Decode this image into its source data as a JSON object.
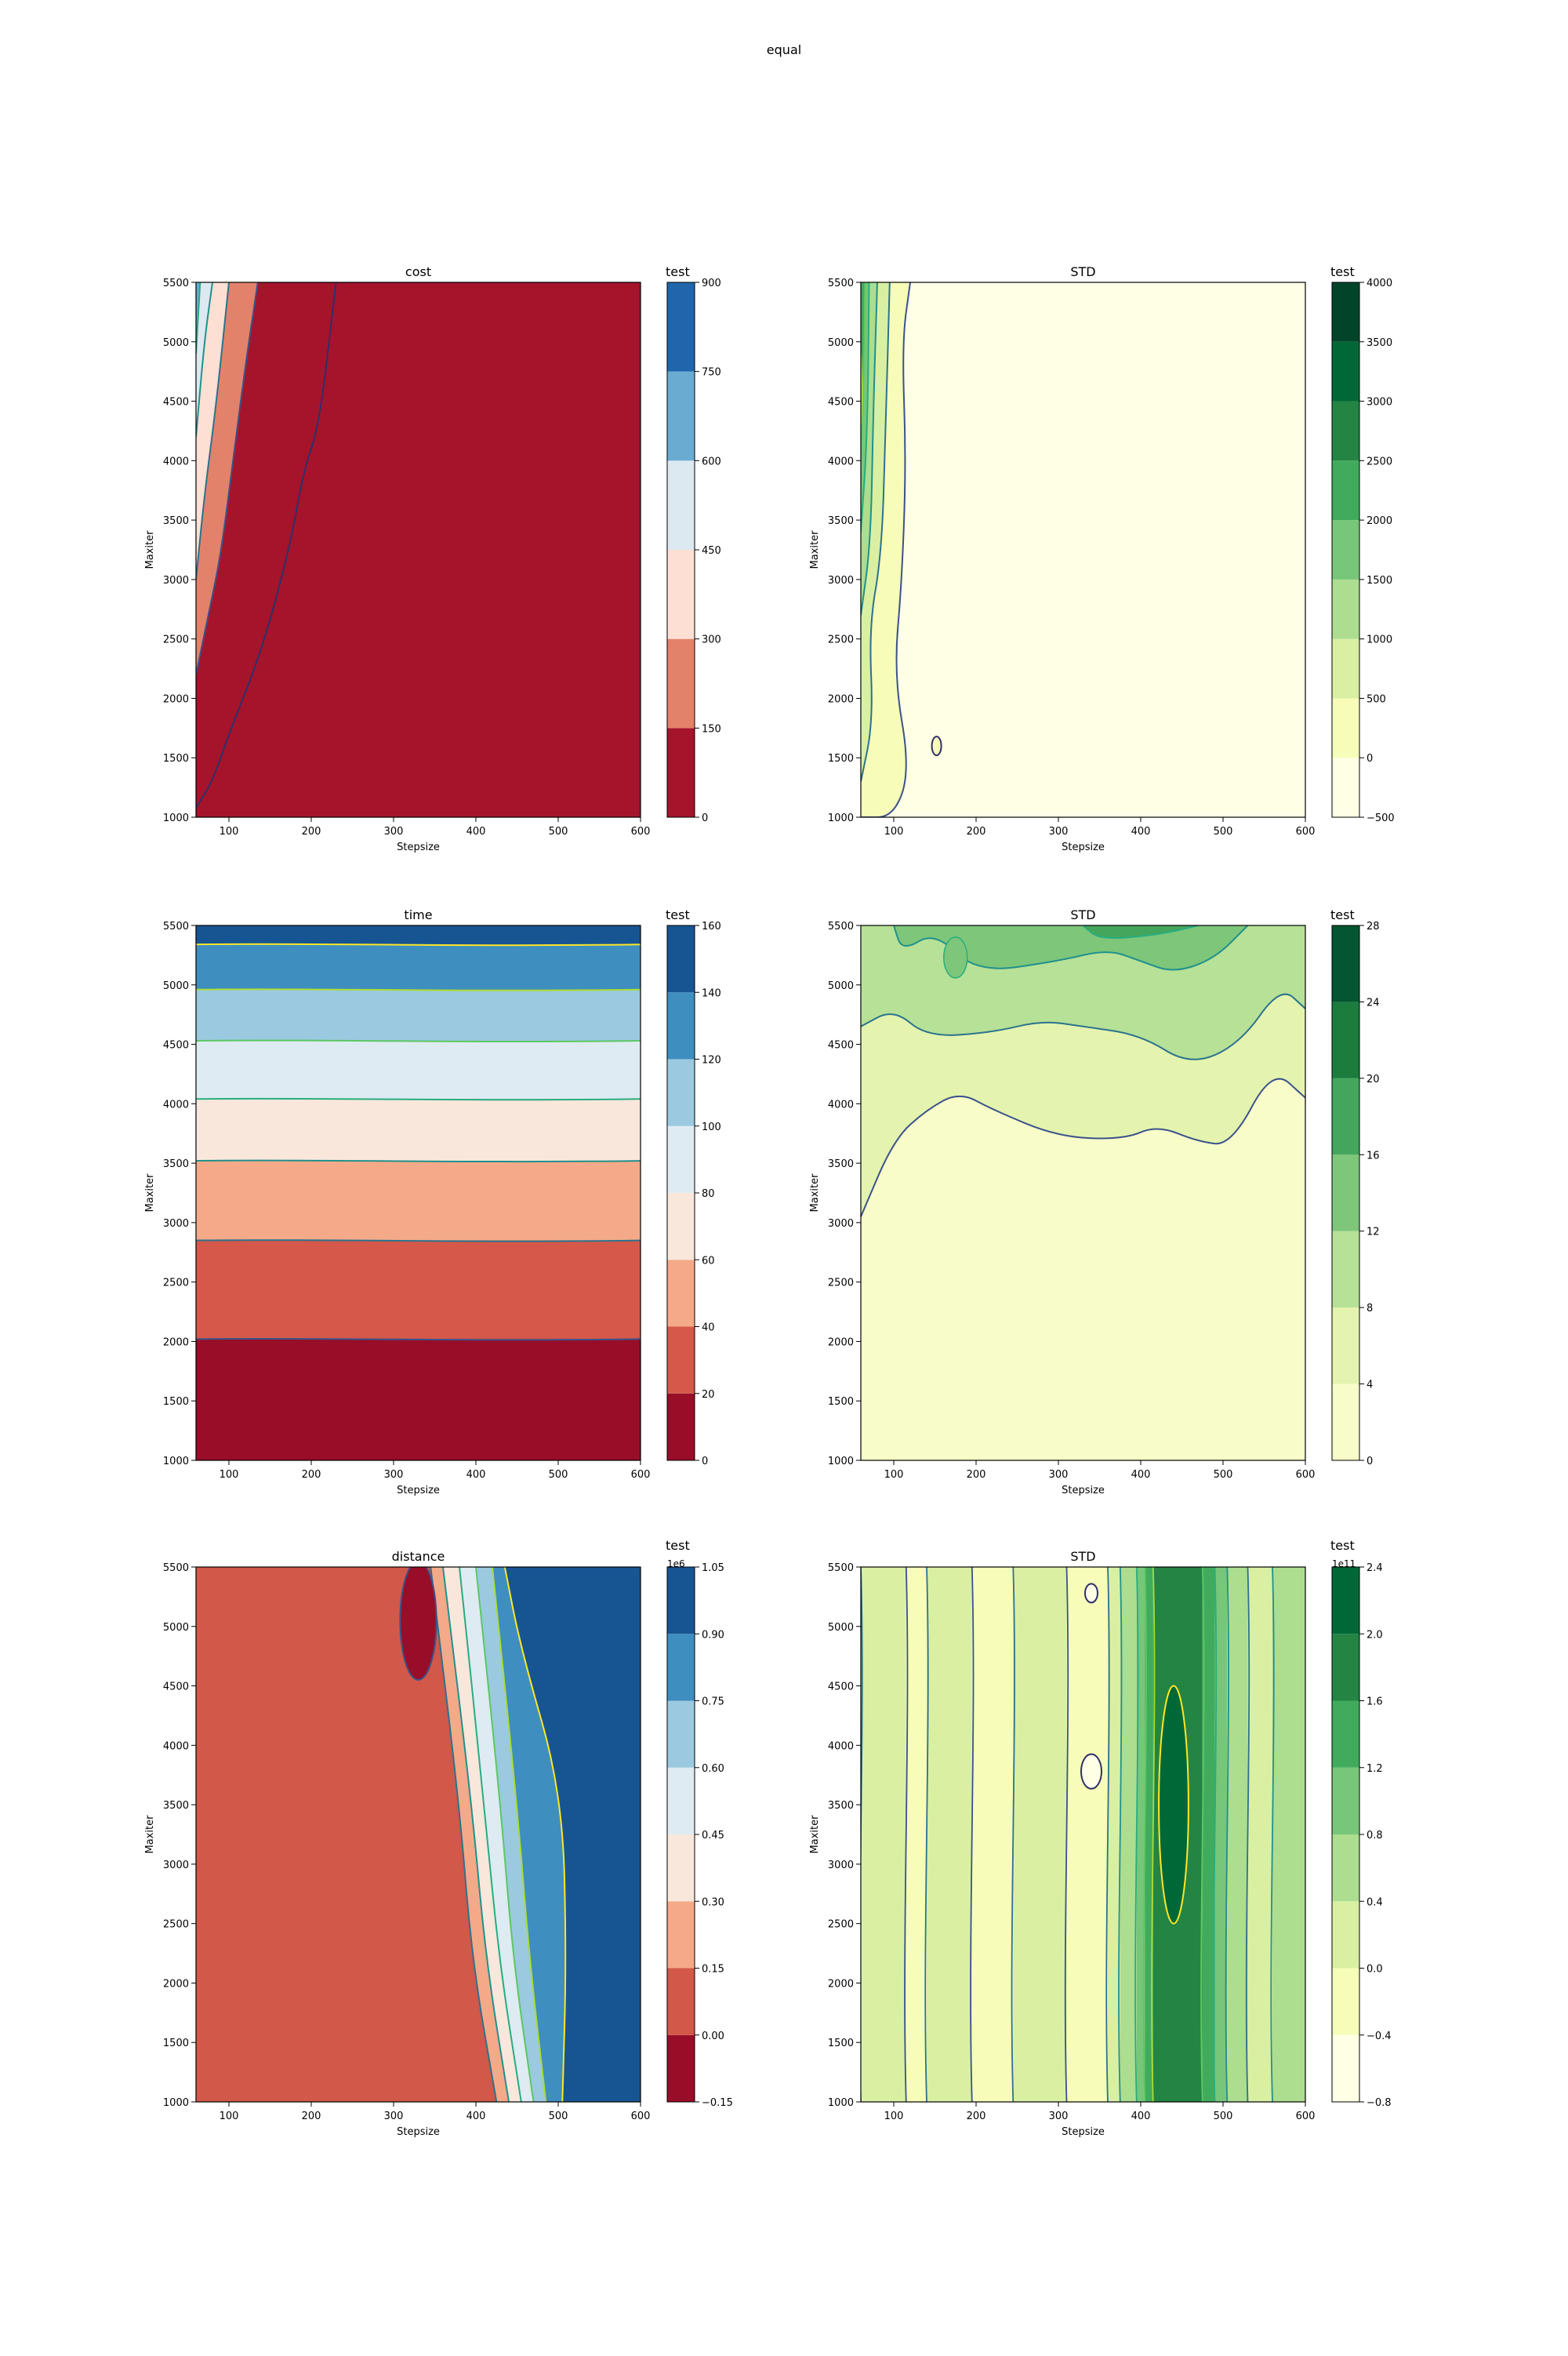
{
  "figure": {
    "suptitle": "equal"
  },
  "chart_data": [
    {
      "type": "heatmap",
      "id": "cost",
      "title": "cost",
      "xlabel": "Stepsize",
      "ylabel": "Maxiter",
      "xlim": [
        60,
        600
      ],
      "ylim": [
        1000,
        5500
      ],
      "xticks": [
        100,
        200,
        300,
        400,
        500,
        600
      ],
      "yticks": [
        1000,
        1500,
        2000,
        2500,
        3000,
        3500,
        4000,
        4500,
        5000,
        5500
      ],
      "colorbar": {
        "label": "test",
        "offset_text": "",
        "levels": [
          0,
          150,
          300,
          450,
          600,
          750,
          900
        ],
        "tick_labels": [
          "0",
          "150",
          "300",
          "450",
          "600",
          "750",
          "900"
        ],
        "colors": [
          "#a5142b",
          "#e3826a",
          "#fde0d3",
          "#dce9f1",
          "#6aabd1",
          "#2066ac"
        ]
      },
      "regions": [
        {
          "level": 0,
          "boundary": [
            [
              60,
              1080
            ],
            [
              80,
              1300
            ],
            [
              100,
              1700
            ],
            [
              140,
              2400
            ],
            [
              175,
              3300
            ],
            [
              190,
              3900
            ],
            [
              210,
              4300
            ],
            [
              230,
              5500
            ]
          ]
        },
        {
          "level": 1,
          "boundary": [
            [
              60,
              2200
            ],
            [
              75,
              2700
            ],
            [
              90,
              3200
            ],
            [
              105,
              4000
            ],
            [
              120,
              4800
            ],
            [
              135,
              5500
            ]
          ]
        },
        {
          "level": 2,
          "boundary": [
            [
              60,
              3000
            ],
            [
              70,
              3700
            ],
            [
              85,
              4500
            ],
            [
              100,
              5500
            ]
          ]
        },
        {
          "level": 3,
          "boundary": [
            [
              60,
              4200
            ],
            [
              70,
              5000
            ],
            [
              80,
              5500
            ]
          ]
        },
        {
          "level": 4,
          "boundary": [
            [
              60,
              4900
            ],
            [
              65,
              5500
            ]
          ]
        }
      ]
    },
    {
      "type": "heatmap",
      "id": "cost_std",
      "title": "STD",
      "xlabel": "Stepsize",
      "ylabel": "Maxiter",
      "xlim": [
        60,
        600
      ],
      "ylim": [
        1000,
        5500
      ],
      "xticks": [
        100,
        200,
        300,
        400,
        500,
        600
      ],
      "yticks": [
        1000,
        1500,
        2000,
        2500,
        3000,
        3500,
        4000,
        4500,
        5000,
        5500
      ],
      "colorbar": {
        "label": "test",
        "offset_text": "",
        "levels": [
          -500,
          0,
          500,
          1000,
          1500,
          2000,
          2500,
          3000,
          3500,
          4000
        ],
        "tick_labels": [
          "−500",
          "0",
          "500",
          "1000",
          "1500",
          "2000",
          "2500",
          "3000",
          "3500",
          "4000"
        ],
        "colors": [
          "#ffffe5",
          "#f7fcb9",
          "#d9f0a3",
          "#addd8e",
          "#78c679",
          "#41ab5d",
          "#238443",
          "#006837",
          "#004529"
        ]
      },
      "regions": [
        {
          "level": 1,
          "boundary": [
            [
              60,
              1000
            ],
            [
              100,
              1000
            ],
            [
              120,
              1400
            ],
            [
              100,
              2200
            ],
            [
              110,
              3000
            ],
            [
              115,
              4000
            ],
            [
              110,
              5000
            ],
            [
              120,
              5500
            ]
          ]
        },
        {
          "level": 2,
          "boundary": [
            [
              60,
              1300
            ],
            [
              75,
              1800
            ],
            [
              70,
              2600
            ],
            [
              85,
              3200
            ],
            [
              90,
              4200
            ],
            [
              95,
              5500
            ]
          ]
        },
        {
          "level": 3,
          "boundary": [
            [
              60,
              2700
            ],
            [
              72,
              3300
            ],
            [
              75,
              4400
            ],
            [
              80,
              5500
            ]
          ]
        },
        {
          "level": 4,
          "boundary": [
            [
              60,
              3400
            ],
            [
              68,
              4200
            ],
            [
              70,
              5500
            ]
          ]
        },
        {
          "level": 5,
          "boundary": [
            [
              60,
              4000
            ],
            [
              64,
              4800
            ],
            [
              65,
              5500
            ]
          ]
        },
        {
          "level": 6,
          "boundary": [
            [
              60,
              4300
            ],
            [
              62,
              4600
            ],
            [
              60,
              4900
            ]
          ]
        }
      ]
    },
    {
      "type": "heatmap",
      "id": "time",
      "title": "time",
      "xlabel": "Stepsize",
      "ylabel": "Maxiter",
      "xlim": [
        60,
        600
      ],
      "ylim": [
        1000,
        5500
      ],
      "xticks": [
        100,
        200,
        300,
        400,
        500,
        600
      ],
      "yticks": [
        1000,
        1500,
        2000,
        2500,
        3000,
        3500,
        4000,
        4500,
        5000,
        5500
      ],
      "colorbar": {
        "label": "test",
        "offset_text": "",
        "levels": [
          0,
          20,
          40,
          60,
          80,
          100,
          120,
          140,
          160
        ],
        "tick_labels": [
          "0",
          "20",
          "40",
          "60",
          "80",
          "100",
          "120",
          "140",
          "160"
        ],
        "colors": [
          "#980d27",
          "#d5584a",
          "#f4aa88",
          "#fae7dc",
          "#deebf2",
          "#9bc9e0",
          "#3e8ebf",
          "#175592"
        ]
      },
      "bands": [
        {
          "level": 0,
          "from": 1000,
          "to": 2020
        },
        {
          "level": 1,
          "from": 2020,
          "to": 2850
        },
        {
          "level": 2,
          "from": 2850,
          "to": 3520
        },
        {
          "level": 3,
          "from": 3520,
          "to": 4040
        },
        {
          "level": 4,
          "from": 4040,
          "to": 4530
        },
        {
          "level": 5,
          "from": 4530,
          "to": 4960
        },
        {
          "level": 6,
          "from": 4960,
          "to": 5340
        },
        {
          "level": 7,
          "from": 5340,
          "to": 5500
        }
      ]
    },
    {
      "type": "heatmap",
      "id": "time_std",
      "title": "STD",
      "xlabel": "Stepsize",
      "ylabel": "Maxiter",
      "xlim": [
        60,
        600
      ],
      "ylim": [
        1000,
        5500
      ],
      "xticks": [
        100,
        200,
        300,
        400,
        500,
        600
      ],
      "yticks": [
        1000,
        1500,
        2000,
        2500,
        3000,
        3500,
        4000,
        4500,
        5000,
        5500
      ],
      "colorbar": {
        "label": "test",
        "offset_text": "",
        "levels": [
          0,
          4,
          8,
          12,
          16,
          20,
          24,
          28
        ],
        "tick_labels": [
          "0",
          "4",
          "8",
          "12",
          "16",
          "20",
          "24",
          "28"
        ],
        "colors": [
          "#f7fcc9",
          "#e4f4ae",
          "#b6e196",
          "#7dc67a",
          "#44a65c",
          "#1b7c3e",
          "#03562f"
        ]
      },
      "regions": [
        {
          "level": 1,
          "boundary": [
            [
              60,
              3050
            ],
            [
              100,
              3700
            ],
            [
              140,
              3950
            ],
            [
              180,
              4100
            ],
            [
              220,
              3950
            ],
            [
              300,
              3720
            ],
            [
              380,
              3700
            ],
            [
              420,
              3820
            ],
            [
              470,
              3680
            ],
            [
              510,
              3650
            ],
            [
              560,
              4300
            ],
            [
              600,
              4050
            ]
          ]
        },
        {
          "level": 2,
          "boundary": [
            [
              60,
              4650
            ],
            [
              100,
              4800
            ],
            [
              140,
              4560
            ],
            [
              220,
              4600
            ],
            [
              280,
              4700
            ],
            [
              330,
              4650
            ],
            [
              400,
              4580
            ],
            [
              460,
              4320
            ],
            [
              520,
              4500
            ],
            [
              570,
              4990
            ],
            [
              600,
              4800
            ]
          ]
        },
        {
          "level": 3,
          "boundary": [
            [
              100,
              5500
            ],
            [
              110,
              5280
            ],
            [
              150,
              5450
            ],
            [
              200,
              5100
            ],
            [
              300,
              5200
            ],
            [
              360,
              5300
            ],
            [
              400,
              5200
            ],
            [
              440,
              5100
            ],
            [
              490,
              5220
            ],
            [
              530,
              5500
            ]
          ]
        },
        {
          "level": 4,
          "boundary": [
            [
              330,
              5500
            ],
            [
              350,
              5380
            ],
            [
              420,
              5420
            ],
            [
              470,
              5500
            ]
          ]
        }
      ]
    },
    {
      "type": "heatmap",
      "id": "distance",
      "title": "distance",
      "xlabel": "Stepsize",
      "ylabel": "Maxiter",
      "xlim": [
        60,
        600
      ],
      "ylim": [
        1000,
        5500
      ],
      "xticks": [
        100,
        200,
        300,
        400,
        500,
        600
      ],
      "yticks": [
        1000,
        1500,
        2000,
        2500,
        3000,
        3500,
        4000,
        4500,
        5000,
        5500
      ],
      "colorbar": {
        "label": "test",
        "offset_text": "1e6",
        "levels": [
          -0.15,
          0,
          0.15,
          0.3,
          0.45,
          0.6,
          0.75,
          0.9,
          1.05
        ],
        "tick_labels": [
          "−0.15",
          "0.00",
          "0.15",
          "0.30",
          "0.45",
          "0.60",
          "0.75",
          "0.90",
          "1.05"
        ],
        "colors": [
          "#980d27",
          "#d25849",
          "#f4aa88",
          "#fae7dc",
          "#deebf2",
          "#9bc9e0",
          "#3e8ebf",
          "#175592"
        ]
      },
      "regions": [
        {
          "level": 2,
          "boundary": [
            [
              425,
              1000
            ],
            [
              395,
              2200
            ],
            [
              380,
              3500
            ],
            [
              345,
              5500
            ]
          ]
        },
        {
          "level": 3,
          "boundary": [
            [
              440,
              1000
            ],
            [
              412,
              2200
            ],
            [
              395,
              3500
            ],
            [
              360,
              5500
            ]
          ]
        },
        {
          "level": 4,
          "boundary": [
            [
              455,
              1000
            ],
            [
              428,
              2200
            ],
            [
              410,
              3500
            ],
            [
              380,
              5500
            ]
          ]
        },
        {
          "level": 5,
          "boundary": [
            [
              470,
              1000
            ],
            [
              445,
              2200
            ],
            [
              430,
              3500
            ],
            [
              400,
              5500
            ]
          ]
        },
        {
          "level": 6,
          "boundary": [
            [
              485,
              1000
            ],
            [
              465,
              2200
            ],
            [
              450,
              3500
            ],
            [
              420,
              5500
            ]
          ]
        },
        {
          "level": 7,
          "boundary": [
            [
              505,
              1000
            ],
            [
              510,
              2200
            ],
            [
              505,
              3600
            ],
            [
              455,
              4800
            ],
            [
              435,
              5500
            ]
          ]
        }
      ],
      "holes": [
        {
          "level": 0,
          "center": [
            330,
            5050
          ],
          "radius": [
            22,
            500
          ]
        }
      ]
    },
    {
      "type": "heatmap",
      "id": "distance_std",
      "title": "STD",
      "xlabel": "Stepsize",
      "ylabel": "Maxiter",
      "xlim": [
        60,
        600
      ],
      "ylim": [
        1000,
        5500
      ],
      "xticks": [
        100,
        200,
        300,
        400,
        500,
        600
      ],
      "yticks": [
        1000,
        1500,
        2000,
        2500,
        3000,
        3500,
        4000,
        4500,
        5000,
        5500
      ],
      "colorbar": {
        "label": "test",
        "offset_text": "1e11",
        "levels": [
          -0.8,
          -0.4,
          0,
          0.4,
          0.8,
          1.2,
          1.6,
          2.0,
          2.4
        ],
        "tick_labels": [
          "−0.8",
          "−0.4",
          "0.0",
          "0.4",
          "0.8",
          "1.2",
          "1.6",
          "2.0",
          "2.4"
        ],
        "colors": [
          "#ffffe5",
          "#f7fcb9",
          "#d9f0a3",
          "#addd8e",
          "#78c679",
          "#41ab5d",
          "#238443",
          "#006837"
        ]
      },
      "stripes": [
        {
          "level": 2,
          "x0": 60,
          "x1": 115
        },
        {
          "level": 1,
          "x0": 115,
          "x1": 140
        },
        {
          "level": 2,
          "x0": 140,
          "x1": 195
        },
        {
          "level": 1,
          "x0": 195,
          "x1": 245
        },
        {
          "level": 2,
          "x0": 245,
          "x1": 310
        },
        {
          "level": 1,
          "x0": 310,
          "x1": 360
        },
        {
          "level": 2,
          "x0": 360,
          "x1": 375
        },
        {
          "level": 3,
          "x0": 375,
          "x1": 395
        },
        {
          "level": 4,
          "x0": 395,
          "x1": 405
        },
        {
          "level": 5,
          "x0": 405,
          "x1": 415
        },
        {
          "level": 6,
          "x0": 415,
          "x1": 475
        },
        {
          "level": 5,
          "x0": 475,
          "x1": 490
        },
        {
          "level": 4,
          "x0": 490,
          "x1": 505
        },
        {
          "level": 3,
          "x0": 505,
          "x1": 530
        },
        {
          "level": 2,
          "x0": 530,
          "x1": 560
        },
        {
          "level": 3,
          "x0": 560,
          "x1": 600
        }
      ],
      "blobs": [
        {
          "level": 7,
          "center": [
            440,
            3500
          ],
          "radius": [
            18,
            1000
          ]
        }
      ]
    }
  ]
}
